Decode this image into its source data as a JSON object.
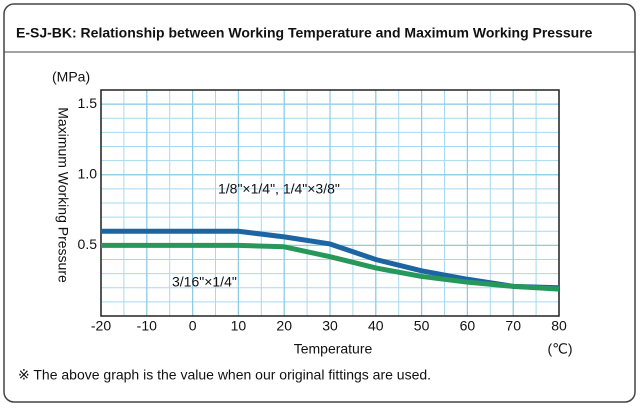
{
  "chart_data": {
    "type": "line",
    "title": "E-SJ-BK: Relationship between Working Temperature and Maximum Working Pressure",
    "y_unit": "(MPa)",
    "y_label": "Maximum Working Pressure",
    "x_label": "Temperature",
    "x_unit": "(℃)",
    "note": "※ The above graph is the value when our original fittings are used.",
    "x": [
      -20,
      -10,
      0,
      10,
      20,
      30,
      40,
      50,
      60,
      70,
      80
    ],
    "series": [
      {
        "name": "1/8\"×1/4\", 1/4\"×3/8\"",
        "color": "#1d65a2",
        "values": [
          0.6,
          0.6,
          0.6,
          0.6,
          0.56,
          0.51,
          0.4,
          0.32,
          0.26,
          0.21,
          0.2
        ]
      },
      {
        "name": "3/16\"×1/4\"",
        "color": "#27985a",
        "values": [
          0.5,
          0.5,
          0.5,
          0.5,
          0.49,
          0.42,
          0.34,
          0.28,
          0.24,
          0.21,
          0.19
        ]
      }
    ],
    "xlim": [
      -20,
      80
    ],
    "xticks": [
      -20,
      -10,
      0,
      10,
      20,
      30,
      40,
      50,
      60,
      70,
      80
    ],
    "ylim": [
      0,
      1.6
    ],
    "yticks": [
      0.5,
      {
        "value": 1,
        "label": "1.0"
      },
      1.5
    ],
    "grid": true
  }
}
